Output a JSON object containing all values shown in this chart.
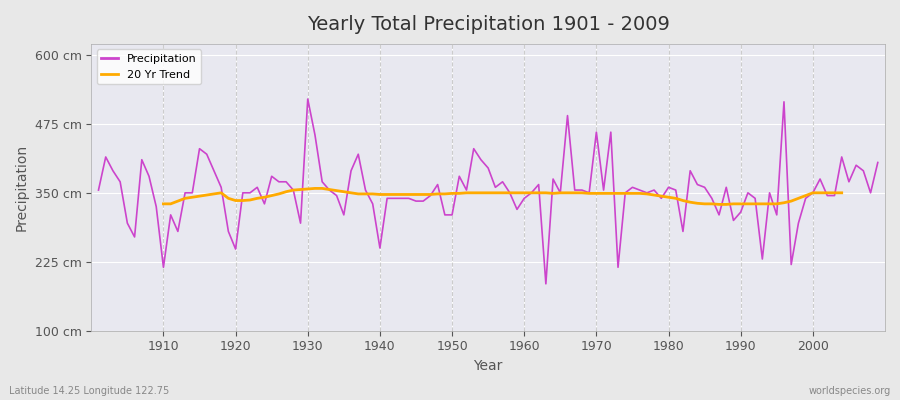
{
  "title": "Yearly Total Precipitation 1901 - 2009",
  "xlabel": "Year",
  "ylabel": "Precipitation",
  "subtitle_left": "Latitude 14.25 Longitude 122.75",
  "subtitle_right": "worldspecies.org",
  "ylim": [
    100,
    620
  ],
  "yticks": [
    100,
    225,
    350,
    475,
    600
  ],
  "ytick_labels": [
    "100 cm",
    "225 cm",
    "350 cm",
    "475 cm",
    "600 cm"
  ],
  "xlim": [
    1900,
    2010
  ],
  "bg_color": "#e8e8e8",
  "plot_bg_color": "#e8e8f0",
  "precip_color": "#cc44cc",
  "trend_color": "#ffaa00",
  "years": [
    1901,
    1902,
    1903,
    1904,
    1905,
    1906,
    1907,
    1908,
    1909,
    1910,
    1911,
    1912,
    1913,
    1914,
    1915,
    1916,
    1917,
    1918,
    1919,
    1920,
    1921,
    1922,
    1923,
    1924,
    1925,
    1926,
    1927,
    1928,
    1929,
    1930,
    1931,
    1932,
    1933,
    1934,
    1935,
    1936,
    1937,
    1938,
    1939,
    1940,
    1941,
    1942,
    1943,
    1944,
    1945,
    1946,
    1947,
    1948,
    1949,
    1950,
    1951,
    1952,
    1953,
    1954,
    1955,
    1956,
    1957,
    1958,
    1959,
    1960,
    1961,
    1962,
    1963,
    1964,
    1965,
    1966,
    1967,
    1968,
    1969,
    1970,
    1971,
    1972,
    1973,
    1974,
    1975,
    1976,
    1977,
    1978,
    1979,
    1980,
    1981,
    1982,
    1983,
    1984,
    1985,
    1986,
    1987,
    1988,
    1989,
    1990,
    1991,
    1992,
    1993,
    1994,
    1995,
    1996,
    1997,
    1998,
    1999,
    2000,
    2001,
    2002,
    2003,
    2004,
    2005,
    2006,
    2007,
    2008,
    2009
  ],
  "precipitation": [
    355,
    415,
    390,
    370,
    295,
    270,
    410,
    380,
    325,
    215,
    310,
    280,
    350,
    350,
    430,
    420,
    390,
    360,
    280,
    248,
    350,
    350,
    360,
    330,
    380,
    370,
    370,
    355,
    295,
    520,
    455,
    370,
    355,
    345,
    310,
    390,
    420,
    355,
    330,
    250,
    340,
    340,
    340,
    340,
    335,
    335,
    345,
    365,
    310,
    310,
    380,
    355,
    430,
    410,
    395,
    360,
    370,
    350,
    320,
    340,
    350,
    365,
    185,
    375,
    350,
    490,
    355,
    355,
    350,
    460,
    355,
    460,
    215,
    350,
    360,
    355,
    350,
    355,
    340,
    360,
    355,
    280,
    390,
    365,
    360,
    340,
    310,
    360,
    300,
    315,
    350,
    340,
    230,
    350,
    310,
    515,
    220,
    295,
    340,
    350,
    375,
    345,
    345,
    415,
    370,
    400,
    390,
    350,
    405
  ],
  "trend": [
    null,
    null,
    null,
    null,
    null,
    null,
    null,
    null,
    null,
    330,
    330,
    335,
    340,
    342,
    344,
    346,
    348,
    350,
    340,
    336,
    336,
    337,
    340,
    342,
    345,
    348,
    352,
    355,
    356,
    357,
    358,
    358,
    356,
    354,
    352,
    350,
    348,
    348,
    348,
    347,
    347,
    347,
    347,
    347,
    347,
    347,
    347,
    348,
    348,
    349,
    349,
    350,
    350,
    350,
    350,
    350,
    350,
    350,
    350,
    350,
    350,
    350,
    350,
    349,
    350,
    350,
    350,
    350,
    349,
    349,
    349,
    349,
    349,
    349,
    349,
    349,
    348,
    346,
    344,
    342,
    340,
    336,
    333,
    331,
    330,
    330,
    329,
    329,
    330,
    330,
    330,
    330,
    330,
    330,
    330,
    332,
    335,
    340,
    345,
    350,
    350,
    350,
    350,
    350,
    null,
    null,
    null,
    null,
    null
  ]
}
